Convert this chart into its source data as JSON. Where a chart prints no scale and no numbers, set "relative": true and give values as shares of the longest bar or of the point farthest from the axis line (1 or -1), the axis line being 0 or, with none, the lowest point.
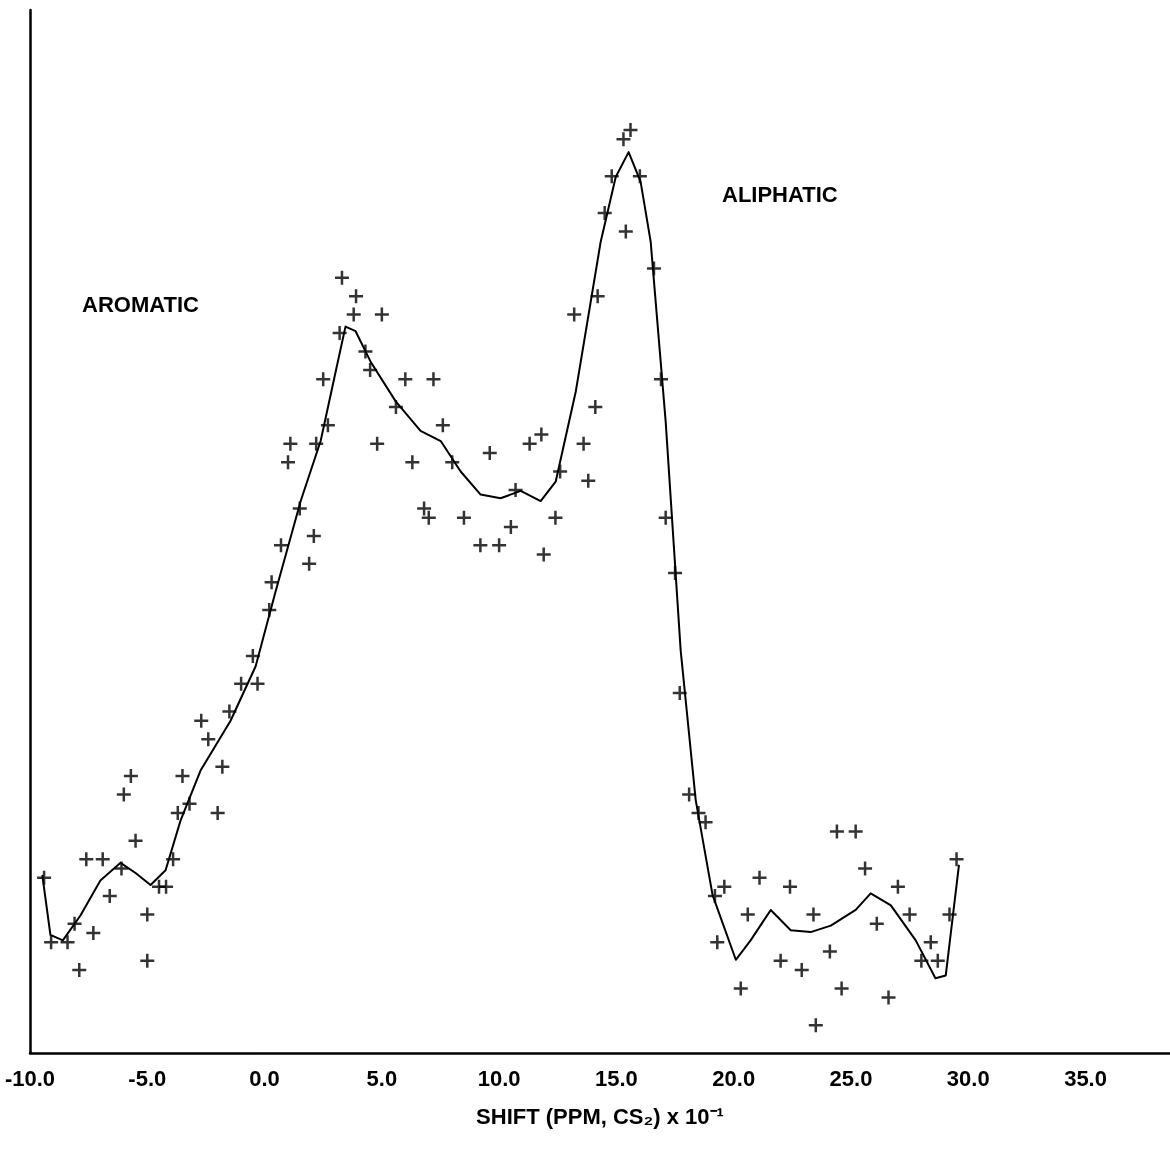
{
  "chart_data": {
    "type": "scatter",
    "relative": true,
    "xlabel": "SHIFT (PPM, CS₂) x 10⁻¹",
    "annotations": [
      "AROMATIC",
      "ALIPHATIC"
    ],
    "xlim": [
      -10,
      38.6
    ],
    "xticks": [
      {
        "value": -10,
        "label": "-10.0"
      },
      {
        "value": -5,
        "label": "-5.0"
      },
      {
        "value": 0,
        "label": "0.0"
      },
      {
        "value": 5,
        "label": "5.0"
      },
      {
        "value": 10,
        "label": "10.0"
      },
      {
        "value": 15,
        "label": "15.0"
      },
      {
        "value": 20,
        "label": "20.0"
      },
      {
        "value": 25,
        "label": "25.0"
      },
      {
        "value": 30,
        "label": "30.0"
      },
      {
        "value": 35,
        "label": "35.0"
      }
    ],
    "tick_labels": "x",
    "series": [
      {
        "type": "scatter",
        "marker": "cross",
        "color": "#000000",
        "x": [
          -9.4,
          -9.1,
          -8.4,
          -7.9,
          -8.1,
          -7.6,
          -7.3,
          -6.9,
          -6.6,
          -6.1,
          -6.0,
          -5.7,
          -5.5,
          -5.0,
          -5.0,
          -4.5,
          -4.2,
          -3.9,
          -3.7,
          -3.5,
          -3.2,
          -2.7,
          -2.4,
          -2.0,
          -1.8,
          -1.5,
          -1.0,
          -0.5,
          -0.3,
          0.2,
          0.3,
          0.7,
          1.0,
          1.1,
          1.5,
          1.9,
          2.1,
          2.2,
          2.5,
          2.7,
          3.2,
          3.3,
          3.8,
          3.9,
          4.3,
          4.5,
          4.8,
          5.0,
          5.6,
          6.0,
          6.3,
          6.8,
          7.0,
          7.2,
          7.6,
          8.0,
          8.5,
          9.2,
          9.6,
          10.0,
          10.5,
          10.7,
          11.3,
          11.8,
          11.9,
          12.4,
          12.6,
          13.2,
          13.6,
          13.8,
          14.1,
          14.2,
          14.5,
          14.8,
          15.3,
          15.4,
          15.6,
          16.0,
          16.6,
          16.9,
          17.1,
          17.5,
          17.7,
          18.1,
          18.5,
          18.8,
          19.2,
          19.3,
          19.6,
          20.3,
          20.6,
          21.1,
          22.0,
          22.4,
          22.9,
          23.4,
          23.5,
          24.1,
          24.4,
          24.6,
          25.2,
          25.6,
          26.1,
          26.6,
          27.0,
          27.5,
          28.0,
          28.4,
          28.7,
          29.2,
          29.5
        ],
        "values": [
          0.19,
          0.12,
          0.12,
          0.09,
          0.14,
          0.21,
          0.13,
          0.21,
          0.17,
          0.2,
          0.28,
          0.3,
          0.23,
          0.15,
          0.1,
          0.18,
          0.18,
          0.21,
          0.26,
          0.3,
          0.27,
          0.36,
          0.34,
          0.26,
          0.31,
          0.37,
          0.4,
          0.43,
          0.4,
          0.48,
          0.51,
          0.55,
          0.64,
          0.66,
          0.59,
          0.53,
          0.56,
          0.66,
          0.73,
          0.68,
          0.78,
          0.84,
          0.8,
          0.82,
          0.76,
          0.74,
          0.66,
          0.8,
          0.7,
          0.73,
          0.64,
          0.59,
          0.58,
          0.73,
          0.68,
          0.64,
          0.58,
          0.55,
          0.65,
          0.55,
          0.57,
          0.61,
          0.66,
          0.67,
          0.54,
          0.58,
          0.63,
          0.8,
          0.66,
          0.62,
          0.7,
          0.82,
          0.91,
          0.95,
          0.99,
          0.89,
          1.0,
          0.95,
          0.85,
          0.73,
          0.58,
          0.52,
          0.39,
          0.28,
          0.26,
          0.25,
          0.17,
          0.12,
          0.18,
          0.07,
          0.15,
          0.19,
          0.1,
          0.18,
          0.09,
          0.15,
          0.03,
          0.11,
          0.24,
          0.07,
          0.24,
          0.2,
          0.14,
          0.06,
          0.18,
          0.15,
          0.1,
          0.12,
          0.1,
          0.15,
          0.21
        ]
      },
      {
        "type": "line",
        "marker": "none",
        "line_style": "solid",
        "color": "#000000",
        "x": [
          -9.47,
          -9.13,
          -8.6,
          -7.85,
          -7.0,
          -6.14,
          -5.5,
          -4.86,
          -4.22,
          -3.58,
          -2.73,
          -1.45,
          -0.38,
          0.47,
          1.54,
          2.39,
          3.03,
          3.45,
          3.88,
          4.52,
          5.59,
          6.65,
          7.51,
          8.36,
          9.21,
          10.06,
          10.92,
          11.77,
          12.41,
          13.27,
          14.33,
          14.97,
          15.52,
          16.03,
          16.46,
          17.1,
          17.74,
          18.38,
          19.1,
          20.09,
          20.72,
          21.58,
          22.43,
          23.28,
          24.14,
          25.2,
          25.84,
          26.7,
          27.76,
          28.6,
          29.04,
          29.6
        ],
        "values": [
          0.192,
          0.128,
          0.122,
          0.149,
          0.187,
          0.206,
          0.195,
          0.182,
          0.198,
          0.252,
          0.306,
          0.36,
          0.419,
          0.5,
          0.598,
          0.663,
          0.738,
          0.787,
          0.782,
          0.749,
          0.706,
          0.674,
          0.663,
          0.63,
          0.605,
          0.601,
          0.609,
          0.598,
          0.619,
          0.717,
          0.879,
          0.949,
          0.976,
          0.944,
          0.879,
          0.684,
          0.436,
          0.274,
          0.171,
          0.101,
          0.122,
          0.155,
          0.133,
          0.131,
          0.138,
          0.155,
          0.173,
          0.16,
          0.122,
          0.081,
          0.084,
          0.203
        ]
      }
    ]
  }
}
